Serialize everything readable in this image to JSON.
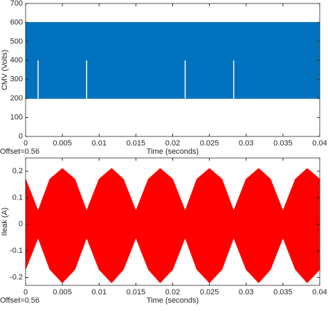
{
  "chart_data": [
    {
      "type": "band",
      "ylabel": "CMV (Volts)",
      "xlabel": "Time (seconds)",
      "note": "Offset=0.56",
      "x": [
        0,
        0.04
      ],
      "upper": [
        600,
        600
      ],
      "lower": [
        200,
        200
      ],
      "color": "#0072bd",
      "dips": {
        "x": [
          0.0017,
          0.0083,
          0.0217,
          0.0283
        ],
        "values": [
          400,
          400,
          400,
          400
        ],
        "color": "#ffffff"
      },
      "xlim": [
        0,
        0.04
      ],
      "xticks": [
        0,
        0.005,
        0.01,
        0.015,
        0.02,
        0.025,
        0.03,
        0.035,
        0.04
      ],
      "ylim": [
        0,
        700
      ],
      "yticks": [
        0,
        100,
        200,
        300,
        400,
        500,
        600,
        700
      ]
    },
    {
      "type": "band",
      "ylabel": "Ileak (A)",
      "xlabel": "Time (seconds)",
      "note": "Offset=0.56",
      "x": [
        0,
        0.0017,
        0.0033,
        0.005,
        0.0067,
        0.0083,
        0.01,
        0.0117,
        0.0133,
        0.015,
        0.0167,
        0.0183,
        0.02,
        0.0217,
        0.0233,
        0.025,
        0.0267,
        0.0283,
        0.03,
        0.0317,
        0.0333,
        0.035,
        0.0367,
        0.0383,
        0.04
      ],
      "upper": [
        0.17,
        0.05,
        0.17,
        0.21,
        0.17,
        0.05,
        0.17,
        0.21,
        0.17,
        0.05,
        0.17,
        0.21,
        0.17,
        0.05,
        0.17,
        0.21,
        0.17,
        0.05,
        0.17,
        0.21,
        0.17,
        0.05,
        0.17,
        0.21,
        0.17
      ],
      "lower": [
        -0.17,
        -0.05,
        -0.17,
        -0.22,
        -0.17,
        -0.05,
        -0.17,
        -0.22,
        -0.17,
        -0.05,
        -0.17,
        -0.22,
        -0.17,
        -0.05,
        -0.17,
        -0.22,
        -0.17,
        -0.05,
        -0.17,
        -0.22,
        -0.17,
        -0.05,
        -0.17,
        -0.22,
        -0.17
      ],
      "color": "#ff0000",
      "xlim": [
        0,
        0.04
      ],
      "xticks": [
        0,
        0.005,
        0.01,
        0.015,
        0.02,
        0.025,
        0.03,
        0.035,
        0.04
      ],
      "ylim": [
        -0.23,
        0.25
      ],
      "yticks": [
        -0.2,
        -0.1,
        0,
        0.1,
        0.2
      ]
    }
  ]
}
